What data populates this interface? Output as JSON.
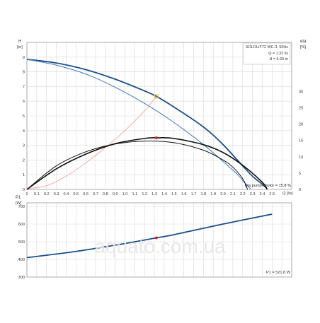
{
  "chart_data": [
    {
      "type": "line",
      "title": "",
      "model_label": "SOLOLIFT2 WC-3, 50Hz",
      "operating_point": {
        "q_text": "Q = 1.32 l/s",
        "h_text": "H = 6.33 m",
        "q": 1.32,
        "h": 6.33,
        "eta": 15.8
      },
      "ylabel": "H",
      "ylabel_unit": "[m]",
      "y2label": "eta",
      "y2label_unit": "[%]",
      "xlabel": "Q [l/s]",
      "xlim": [
        0,
        2.7
      ],
      "ylim": [
        0,
        10
      ],
      "y2lim": [
        0,
        45
      ],
      "x_ticks": [
        "0",
        "0.1",
        "0.2",
        "0.3",
        "0.4",
        "0.5",
        "0.6",
        "0.7",
        "0.8",
        "0.9",
        "1.0",
        "1.1",
        "1.2",
        "1.3",
        "1.4",
        "1.5",
        "1.6",
        "1.7",
        "1.8",
        "1.9",
        "2.0",
        "2.1",
        "2.2",
        "2.3",
        "2.4",
        "2.5"
      ],
      "y_ticks": [
        "0",
        "1",
        "2",
        "3",
        "4",
        "5",
        "6",
        "7",
        "8",
        "9"
      ],
      "y2_ticks": [
        "0",
        "5",
        "10",
        "15",
        "20",
        "25",
        "30"
      ],
      "grid": true,
      "eta_annotation": "Eta pump+motor = 15.8 %",
      "series": [
        {
          "key": "h_max",
          "axis": "y",
          "color": "#1b4f8a",
          "x": [
            0,
            0.3,
            0.6,
            0.9,
            1.2,
            1.32,
            1.5,
            1.8,
            2.0,
            2.2,
            2.3,
            2.4,
            2.45
          ],
          "y": [
            8.85,
            8.6,
            8.15,
            7.5,
            6.7,
            6.33,
            5.6,
            4.25,
            3.05,
            1.6,
            0.9,
            0.35,
            0.05
          ]
        },
        {
          "key": "h_min",
          "axis": "y",
          "color": "#3a78c0",
          "x": [
            0,
            0.3,
            0.6,
            0.9,
            1.2,
            1.5,
            1.8,
            2.0,
            2.15,
            2.2,
            2.25,
            2.28
          ],
          "y": [
            8.85,
            8.45,
            7.85,
            6.95,
            5.85,
            4.55,
            3.05,
            1.9,
            1.0,
            0.6,
            0.25,
            0.05
          ]
        },
        {
          "key": "system_curve",
          "axis": "y",
          "color": "#f2a0a0",
          "x": [
            0,
            0.2,
            0.4,
            0.6,
            0.8,
            1.0,
            1.2,
            1.32
          ],
          "y": [
            0.05,
            0.25,
            0.9,
            1.8,
            2.85,
            4.0,
            5.35,
            6.33
          ]
        },
        {
          "key": "eta_max",
          "axis": "y2",
          "color": "#111111",
          "x": [
            0,
            0.3,
            0.6,
            0.9,
            1.2,
            1.32,
            1.5,
            1.8,
            2.0,
            2.2,
            2.4,
            2.45
          ],
          "y": [
            0,
            6.3,
            10.8,
            14.0,
            15.6,
            15.8,
            15.6,
            13.7,
            11.3,
            7.4,
            2.2,
            0
          ]
        },
        {
          "key": "eta_min",
          "axis": "y2",
          "color": "#111111",
          "x": [
            0,
            0.3,
            0.6,
            0.9,
            1.2,
            1.5,
            1.8,
            2.0,
            2.1,
            2.2,
            2.25
          ],
          "y": [
            0,
            7.2,
            11.5,
            13.9,
            14.8,
            14.3,
            12.0,
            9.0,
            6.8,
            3.3,
            0
          ]
        }
      ]
    },
    {
      "type": "line",
      "title": "",
      "ylabel": "P1",
      "ylabel_unit": "[W]",
      "xlim": [
        0,
        2.7
      ],
      "ylim": [
        300,
        720
      ],
      "y_ticks": [
        "300",
        "400",
        "500",
        "600",
        "700"
      ],
      "grid": true,
      "p1_annotation": "P1 = 521.8 W",
      "operating_point": {
        "q": 1.32,
        "p1": 521.8
      },
      "series": [
        {
          "key": "p1",
          "color": "#1b4f8a",
          "x": [
            0,
            0.5,
            1.0,
            1.32,
            1.5,
            2.0,
            2.5
          ],
          "y": [
            410,
            445,
            490,
            521.8,
            540,
            600,
            656
          ]
        }
      ]
    }
  ],
  "colors": {
    "grid": "#d9d9d9",
    "axis": "#666666",
    "op_marker_top": "#f0c020",
    "op_marker": "#e02020",
    "watermark": "#e6e6e6",
    "text": "#333333"
  },
  "watermark": "aquato.com.ua"
}
